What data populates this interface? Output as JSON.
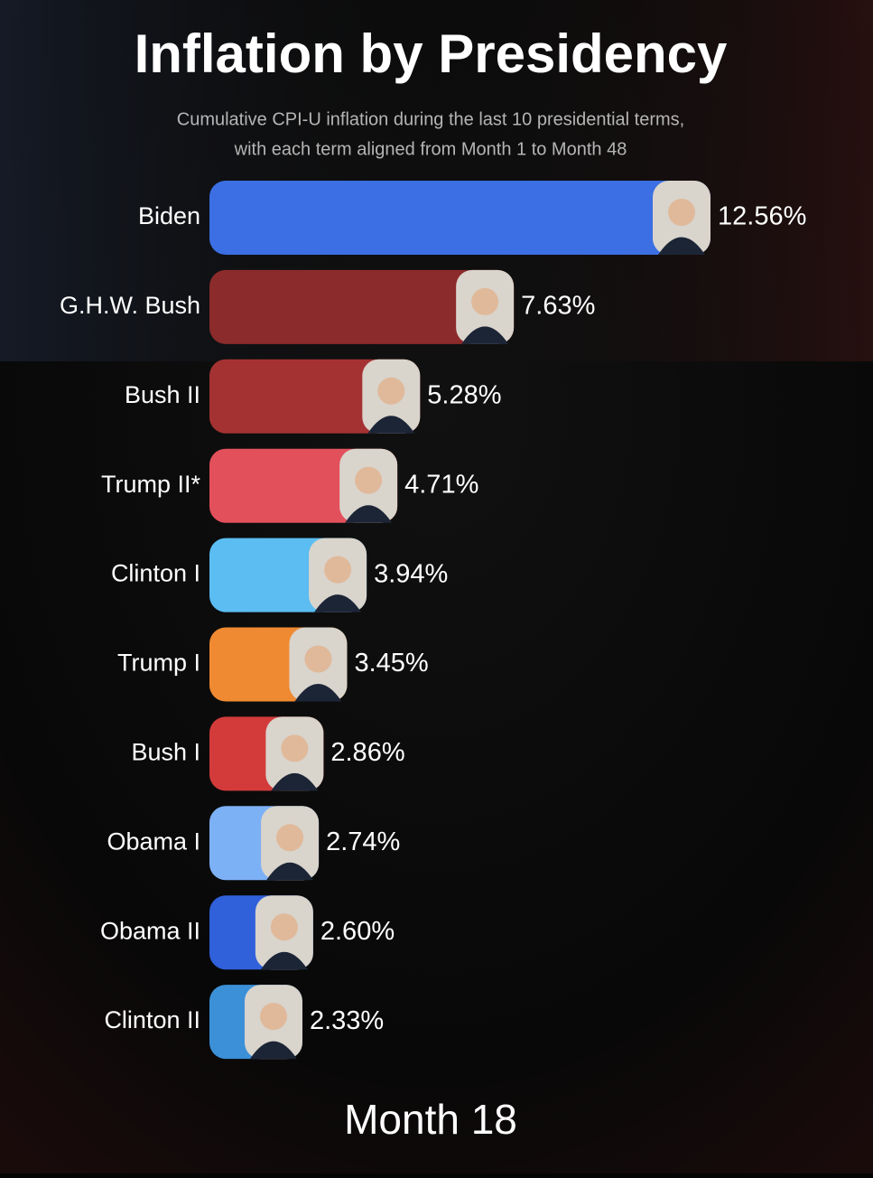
{
  "chart_data": {
    "type": "bar",
    "orientation": "horizontal",
    "title": "Inflation by Presidency",
    "subtitle": [
      "Cumulative CPI-U inflation during the last 10 presidential terms,",
      "with each term aligned from Month 1 to Month 48"
    ],
    "categories": [
      "Biden",
      "G.H.W. Bush",
      "Bush II",
      "Trump II*",
      "Clinton I",
      "Trump I",
      "Bush I",
      "Obama I",
      "Obama II",
      "Clinton II"
    ],
    "values": [
      12.56,
      7.63,
      5.28,
      4.71,
      3.94,
      3.45,
      2.86,
      2.74,
      2.6,
      2.33
    ],
    "value_labels": [
      "12.56%",
      "7.63%",
      "5.28%",
      "4.71%",
      "3.94%",
      "3.45%",
      "2.86%",
      "2.74%",
      "2.60%",
      "2.33%"
    ],
    "colors": [
      "#3b6fe3",
      "#8c2b2b",
      "#a53232",
      "#e2505b",
      "#5bbdf2",
      "#f08a32",
      "#d33b3b",
      "#7db1f6",
      "#3060da",
      "#3b90d8"
    ],
    "footer": "Month 18"
  }
}
